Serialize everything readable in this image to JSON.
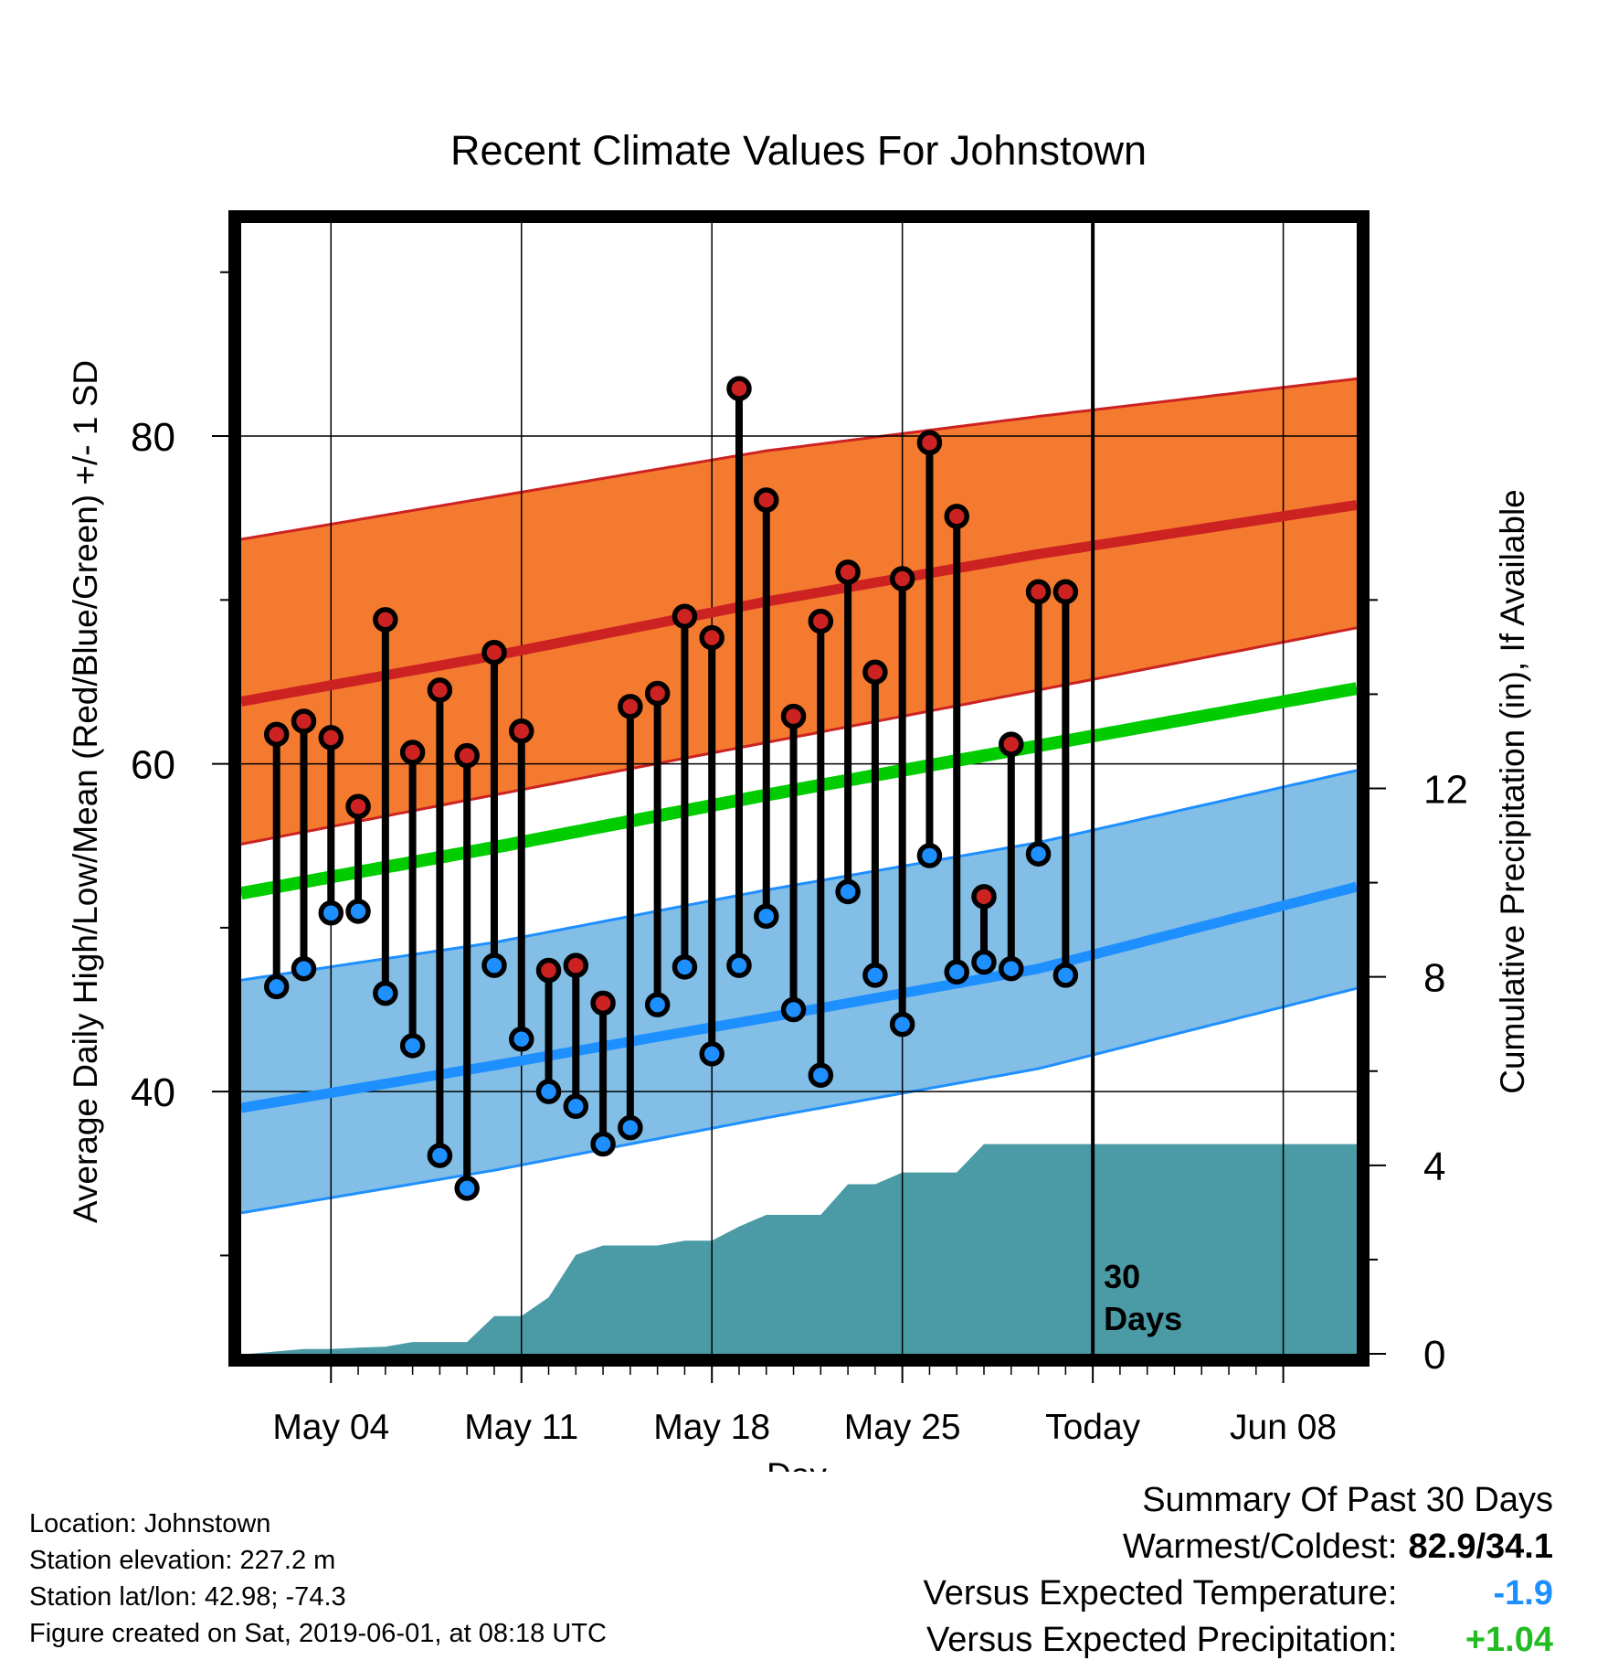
{
  "chart_data": {
    "type": "line",
    "title": "Recent Climate Values For Johnstown",
    "xlabel": "Day",
    "ylabel": "Average Daily High/Low/Mean (Red/Blue/Green) +/- 1 SD",
    "y2label": "Cumulative Precipitation (in), If Available",
    "ylim": [
      24,
      93
    ],
    "y2lim": [
      0,
      24
    ],
    "y_ticks": [
      40,
      60,
      80
    ],
    "y2_ticks": [
      0,
      4,
      8,
      12
    ],
    "x_ticks": [
      {
        "day": 4,
        "label": "May 04"
      },
      {
        "day": 11,
        "label": "May 11"
      },
      {
        "day": 18,
        "label": "May 18"
      },
      {
        "day": 25,
        "label": "May 25"
      },
      {
        "day": 32,
        "label": "Today"
      },
      {
        "day": 39,
        "label": "Jun 08"
      }
    ],
    "xlim": [
      0.7,
      41.7
    ],
    "today_day": 32,
    "today_annotation": [
      "30",
      "Days"
    ],
    "grid": true,
    "colors": {
      "high": "#cc2222",
      "high_band": "#f47a30",
      "low": "#1e8fff",
      "low_band": "#82bee6",
      "mean": "#00cc00",
      "precip": "#4a9ba5"
    },
    "normals": {
      "days": [
        0.7,
        10,
        20,
        30,
        41.7
      ],
      "high_mean": [
        63.8,
        66.6,
        69.9,
        72.8,
        75.8
      ],
      "high_upper": [
        73.7,
        76.3,
        79.1,
        81.2,
        83.5
      ],
      "high_lower": [
        55.1,
        58.1,
        61.3,
        64.5,
        68.3
      ],
      "mean": [
        52.1,
        54.9,
        58.1,
        61.1,
        64.6
      ],
      "low_mean": [
        39.0,
        41.6,
        44.5,
        47.5,
        52.5
      ],
      "low_upper": [
        46.8,
        49.1,
        52.3,
        55.2,
        59.6
      ],
      "low_lower": [
        32.6,
        35.2,
        38.4,
        41.4,
        46.3
      ]
    },
    "daily": {
      "days": [
        2,
        3,
        4,
        5,
        6,
        7,
        8,
        9,
        10,
        11,
        12,
        13,
        14,
        15,
        16,
        17,
        18,
        19,
        20,
        21,
        22,
        23,
        24,
        25,
        26,
        27,
        28,
        29,
        30,
        31
      ],
      "high": [
        61.8,
        62.6,
        61.6,
        57.4,
        68.8,
        60.7,
        64.5,
        60.5,
        66.8,
        62.0,
        47.4,
        47.7,
        45.4,
        63.5,
        64.3,
        69.0,
        67.7,
        82.9,
        76.1,
        62.9,
        68.7,
        71.7,
        65.6,
        71.3,
        79.6,
        75.1,
        51.9,
        61.2,
        70.5,
        70.5
      ],
      "low": [
        46.4,
        47.5,
        50.9,
        51.0,
        46.0,
        42.8,
        36.1,
        34.1,
        47.7,
        43.2,
        40.0,
        39.1,
        36.8,
        37.8,
        45.3,
        47.6,
        42.3,
        47.7,
        50.7,
        45.0,
        41.0,
        52.2,
        47.1,
        44.1,
        54.4,
        47.3,
        47.9,
        47.5,
        54.5,
        47.1
      ]
    },
    "precip_cumulative": {
      "days": [
        1,
        2,
        3,
        4,
        5,
        6,
        7,
        8,
        9,
        10,
        11,
        12,
        13,
        14,
        15,
        16,
        17,
        18,
        19,
        20,
        21,
        22,
        23,
        24,
        25,
        26,
        27,
        28,
        29,
        30,
        31,
        41.7
      ],
      "values": [
        0,
        0.05,
        0.1,
        0.1,
        0.13,
        0.15,
        0.25,
        0.25,
        0.25,
        0.8,
        0.8,
        1.2,
        2.1,
        2.3,
        2.3,
        2.3,
        2.4,
        2.4,
        2.7,
        2.95,
        2.95,
        2.95,
        3.6,
        3.6,
        3.85,
        3.85,
        3.85,
        4.45,
        4.45,
        4.45,
        4.45,
        4.45
      ]
    }
  },
  "info": {
    "location": "Location: Johnstown",
    "elevation": "Station elevation: 227.2 m",
    "latlon": "Station lat/lon: 42.98; -74.3",
    "created": "Figure created on Sat, 2019-06-01, at 08:18 UTC"
  },
  "summary": {
    "title": "Summary Of Past 30 Days",
    "warmest_coldest_label": "Warmest/Coldest:",
    "warmest_coldest_value": "82.9/34.1",
    "temp_label": "Versus Expected Temperature:",
    "temp_value": "-1.9",
    "temp_color": "#1e8fff",
    "precip_label": "Versus Expected Precipitation:",
    "precip_value": "+1.04",
    "precip_color": "#22bb22"
  }
}
